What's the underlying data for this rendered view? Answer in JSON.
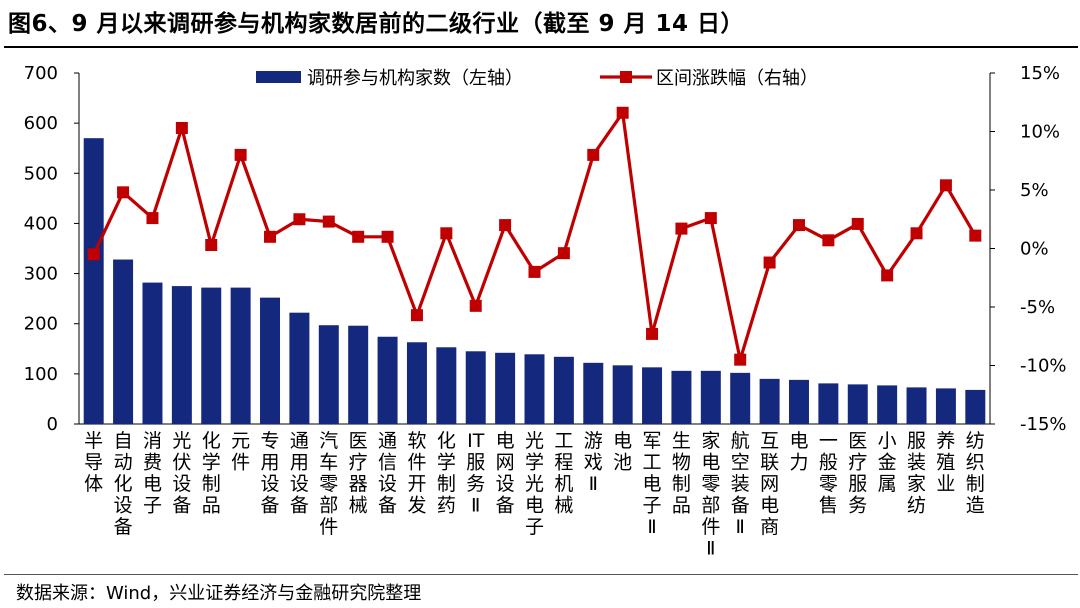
{
  "title": "图6、9 月以来调研参与机构家数居前的二级行业（截至 9 月 14 日）",
  "source": "数据来源：Wind，兴业证券经济与金融研究院整理",
  "colors": {
    "bar": "#14287d",
    "line": "#c00000",
    "text": "#000000"
  },
  "chart_data": {
    "type": "bar+line",
    "title": "图6、9 月以来调研参与机构家数居前的二级行业（截至 9 月 14 日）",
    "categories": [
      "半导体",
      "自动化设备",
      "消费电子",
      "光伏设备",
      "化学制品",
      "元件",
      "专用设备",
      "通用设备",
      "汽车零部件",
      "医疗器械",
      "通信设备",
      "软件开发",
      "化学制药",
      "IT服务Ⅱ",
      "电网设备",
      "光学光电子",
      "工程机械",
      "游戏Ⅱ",
      "电池",
      "军工电子Ⅱ",
      "生物制品",
      "家电零部件Ⅱ",
      "航空装备Ⅱ",
      "互联网电商",
      "电力",
      "一般零售",
      "医疗服务",
      "小金属",
      "服装家纺",
      "养殖业",
      "纺织制造"
    ],
    "series": [
      {
        "name": "调研参与机构家数（左轴）",
        "type": "bar",
        "axis": "left",
        "values": [
          570,
          328,
          282,
          275,
          272,
          272,
          252,
          222,
          197,
          196,
          174,
          163,
          153,
          145,
          142,
          139,
          134,
          122,
          117,
          113,
          106,
          106,
          102,
          90,
          88,
          81,
          79,
          77,
          73,
          71,
          68
        ]
      },
      {
        "name": "区间涨跌幅（右轴）",
        "type": "line",
        "axis": "right",
        "values": [
          -0.5,
          4.8,
          2.6,
          10.3,
          0.3,
          8.0,
          1.0,
          2.5,
          2.3,
          1.0,
          1.0,
          -5.7,
          1.3,
          -4.9,
          2.0,
          -2.0,
          -0.4,
          8.0,
          11.6,
          -7.3,
          1.7,
          2.6,
          -9.5,
          -1.2,
          2.0,
          0.7,
          2.1,
          -2.3,
          1.3,
          5.4,
          1.1
        ]
      }
    ],
    "y_left": {
      "min": 0,
      "max": 700,
      "step": 100,
      "tick_labels": [
        "0",
        "100",
        "200",
        "300",
        "400",
        "500",
        "600",
        "700"
      ]
    },
    "y_right": {
      "min": -15,
      "max": 15,
      "step": 5,
      "tick_labels": [
        "-15%",
        "-10%",
        "-5%",
        "0%",
        "5%",
        "10%",
        "15%"
      ]
    },
    "legend": {
      "position": "top-center",
      "items": [
        "调研参与机构家数（左轴）",
        "区间涨跌幅（右轴）"
      ]
    },
    "grid": false
  }
}
